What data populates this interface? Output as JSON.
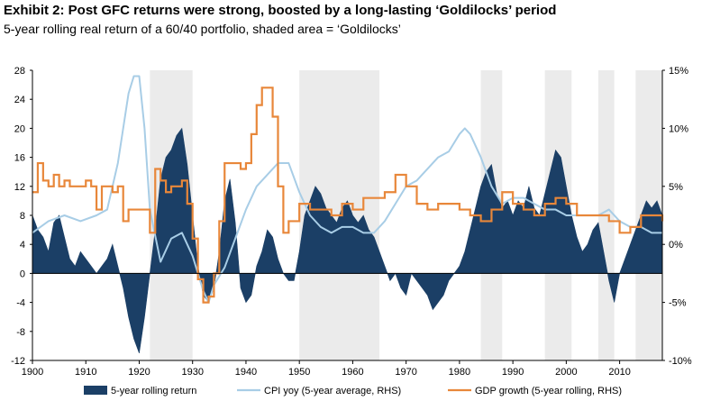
{
  "title": "Exhibit 2: Post GFC returns were strong, boosted by a long-lasting ‘Goldilocks’ period",
  "subtitle": "5-year rolling real return of a 60/40 portfolio, shaded area = ‘Goldilocks’",
  "colors": {
    "returns": "#1b3f66",
    "cpi": "#a8cde6",
    "gdp": "#e8873a",
    "shading": "#ebebeb"
  },
  "chart_data": {
    "type": "area",
    "x_range": [
      1900,
      2018
    ],
    "y_left_range": [
      -12,
      28
    ],
    "y_right_range": [
      -10,
      15
    ],
    "x_ticks": [
      "1900",
      "1910",
      "1920",
      "1930",
      "1940",
      "1950",
      "1960",
      "1970",
      "1980",
      "1990",
      "2000",
      "2010"
    ],
    "y_left_ticks": [
      "28",
      "24",
      "20",
      "16",
      "12",
      "8",
      "4",
      "0",
      "-4",
      "-8",
      "-12"
    ],
    "y_right_ticks": [
      "15%",
      "10%",
      "5%",
      "0%",
      "-5%",
      "-10%"
    ],
    "goldilocks_periods": [
      [
        1922,
        1930
      ],
      [
        1950,
        1965
      ],
      [
        1984,
        1988
      ],
      [
        1996,
        2001
      ],
      [
        2006,
        2009
      ],
      [
        2013,
        2018
      ]
    ],
    "series": [
      {
        "name": "5-year rolling return",
        "axis": "left",
        "kind": "area",
        "x": [
          1900,
          1901,
          1902,
          1903,
          1904,
          1905,
          1906,
          1907,
          1908,
          1909,
          1910,
          1911,
          1912,
          1913,
          1914,
          1915,
          1916,
          1917,
          1918,
          1919,
          1920,
          1921,
          1922,
          1923,
          1924,
          1925,
          1926,
          1927,
          1928,
          1929,
          1930,
          1931,
          1932,
          1933,
          1934,
          1935,
          1936,
          1937,
          1938,
          1939,
          1940,
          1941,
          1942,
          1943,
          1944,
          1945,
          1946,
          1947,
          1948,
          1949,
          1950,
          1951,
          1952,
          1953,
          1954,
          1955,
          1956,
          1957,
          1958,
          1959,
          1960,
          1961,
          1962,
          1963,
          1964,
          1965,
          1966,
          1967,
          1968,
          1969,
          1970,
          1971,
          1972,
          1973,
          1974,
          1975,
          1976,
          1977,
          1978,
          1979,
          1980,
          1981,
          1982,
          1983,
          1984,
          1985,
          1986,
          1987,
          1988,
          1989,
          1990,
          1991,
          1992,
          1993,
          1994,
          1995,
          1996,
          1997,
          1998,
          1999,
          2000,
          2001,
          2002,
          2003,
          2004,
          2005,
          2006,
          2007,
          2008,
          2009,
          2010,
          2011,
          2012,
          2013,
          2014,
          2015,
          2016,
          2017,
          2018
        ],
        "values": [
          8,
          6,
          5,
          3,
          7,
          8,
          5,
          2,
          1,
          3,
          2,
          1,
          0,
          1,
          2,
          4,
          1,
          -2,
          -6,
          -9,
          -11,
          -6,
          0,
          6,
          13,
          16,
          17,
          19,
          20,
          15,
          8,
          1,
          -3,
          -4,
          -2,
          3,
          10,
          13,
          7,
          -2,
          -4,
          -3,
          1,
          3,
          6,
          5,
          2,
          0,
          -1,
          -1,
          3,
          8,
          10,
          12,
          11,
          9,
          8,
          7,
          9,
          10,
          8,
          7,
          8,
          6,
          5,
          3,
          1,
          -1,
          0,
          -2,
          -3,
          0,
          -1,
          -2,
          -3,
          -5,
          -4,
          -3,
          -1,
          0,
          1,
          3,
          6,
          9,
          12,
          14,
          15,
          11,
          9,
          10,
          8,
          10,
          9,
          12,
          9,
          8,
          11,
          14,
          17,
          16,
          12,
          8,
          5,
          3,
          4,
          6,
          7,
          3,
          -1,
          -4,
          0,
          2,
          4,
          6,
          8,
          10,
          9,
          10,
          8
        ]
      },
      {
        "name": "CPI yoy (5-year average, RHS)",
        "axis": "right",
        "kind": "line",
        "x": [
          1900,
          1903,
          1906,
          1909,
          1912,
          1914,
          1916,
          1917,
          1918,
          1919,
          1920,
          1921,
          1922,
          1924,
          1926,
          1928,
          1930,
          1932,
          1933,
          1934,
          1936,
          1938,
          1940,
          1942,
          1944,
          1946,
          1948,
          1950,
          1952,
          1954,
          1956,
          1958,
          1960,
          1962,
          1964,
          1966,
          1968,
          1970,
          1972,
          1974,
          1976,
          1978,
          1980,
          1981,
          1982,
          1984,
          1986,
          1988,
          1990,
          1992,
          1994,
          1996,
          1998,
          2000,
          2002,
          2004,
          2006,
          2008,
          2010,
          2012,
          2014,
          2016,
          2018
        ],
        "values": [
          1.0,
          2.0,
          2.5,
          2.0,
          2.5,
          3.0,
          7.0,
          10.0,
          13.0,
          14.5,
          14.5,
          10.0,
          3.0,
          -1.5,
          0.5,
          1.0,
          -1.0,
          -4.0,
          -5.0,
          -3.5,
          -2.0,
          0.5,
          3.0,
          5.0,
          6.0,
          7.0,
          7.0,
          4.5,
          2.5,
          1.5,
          1.0,
          1.5,
          1.5,
          1.0,
          1.0,
          2.0,
          3.5,
          5.0,
          5.5,
          6.5,
          7.5,
          8.0,
          9.5,
          10.0,
          9.5,
          7.5,
          5.0,
          3.5,
          4.0,
          4.0,
          3.5,
          3.0,
          3.0,
          2.5,
          2.5,
          2.5,
          2.5,
          3.0,
          2.0,
          1.5,
          1.5,
          1.0,
          1.0
        ]
      },
      {
        "name": "GDP growth (5-year rolling, RHS)",
        "axis": "right",
        "kind": "step",
        "x": [
          1900,
          1901,
          1902,
          1903,
          1904,
          1905,
          1906,
          1907,
          1908,
          1909,
          1910,
          1911,
          1912,
          1913,
          1914,
          1915,
          1916,
          1917,
          1918,
          1919,
          1920,
          1921,
          1922,
          1923,
          1924,
          1925,
          1926,
          1927,
          1928,
          1929,
          1930,
          1931,
          1932,
          1933,
          1934,
          1935,
          1936,
          1937,
          1938,
          1939,
          1940,
          1941,
          1942,
          1943,
          1944,
          1945,
          1946,
          1947,
          1948,
          1949,
          1950,
          1952,
          1954,
          1956,
          1958,
          1960,
          1962,
          1964,
          1966,
          1968,
          1970,
          1972,
          1974,
          1976,
          1978,
          1980,
          1982,
          1984,
          1986,
          1988,
          1990,
          1992,
          1994,
          1996,
          1998,
          2000,
          2002,
          2004,
          2006,
          2008,
          2010,
          2012,
          2014,
          2016,
          2018
        ],
        "values": [
          4.5,
          7.0,
          5.5,
          5.0,
          6.0,
          5.0,
          5.5,
          5.0,
          5.0,
          5.0,
          5.5,
          5.0,
          3.0,
          5.0,
          5.0,
          4.5,
          5.0,
          2.0,
          3.0,
          3.0,
          3.0,
          3.0,
          1.0,
          6.5,
          5.5,
          4.5,
          5.0,
          5.0,
          5.5,
          3.5,
          0.5,
          -3.0,
          -5.0,
          -4.5,
          -2.5,
          2.0,
          7.0,
          7.0,
          7.0,
          6.5,
          7.0,
          9.5,
          12.0,
          13.5,
          13.5,
          11.0,
          5.0,
          1.0,
          2.0,
          2.0,
          3.5,
          3.0,
          3.0,
          2.5,
          3.5,
          3.0,
          4.0,
          4.0,
          4.5,
          6.0,
          5.0,
          3.5,
          3.0,
          3.5,
          3.5,
          3.0,
          2.5,
          2.0,
          3.0,
          4.5,
          3.5,
          3.0,
          2.5,
          3.5,
          4.0,
          3.5,
          2.5,
          2.5,
          2.5,
          2.0,
          1.0,
          1.5,
          2.5,
          2.5,
          2.0
        ]
      }
    ]
  },
  "legend": [
    {
      "label": "5-year rolling return",
      "kind": "swatch"
    },
    {
      "label": "CPI yoy (5-year average, RHS)",
      "kind": "line"
    },
    {
      "label": "GDP growth (5-year rolling, RHS)",
      "kind": "line"
    }
  ]
}
